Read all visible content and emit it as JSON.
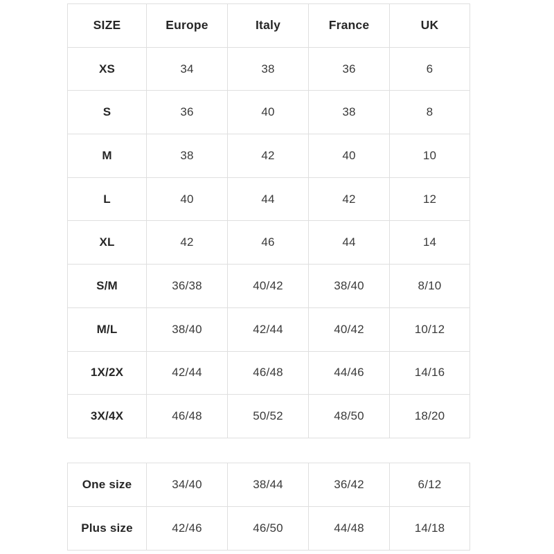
{
  "colors": {
    "background": "#ffffff",
    "border": "#dfdfdf",
    "text": "#3a3a3a",
    "text_bold": "#262626"
  },
  "size_chart": {
    "headers": [
      "SIZE",
      "Europe",
      "Italy",
      "France",
      "UK"
    ],
    "rows": [
      [
        "XS",
        "34",
        "38",
        "36",
        "6"
      ],
      [
        "S",
        "36",
        "40",
        "38",
        "8"
      ],
      [
        "M",
        "38",
        "42",
        "40",
        "10"
      ],
      [
        "L",
        "40",
        "44",
        "42",
        "12"
      ],
      [
        "XL",
        "42",
        "46",
        "44",
        "14"
      ],
      [
        "S/M",
        "36/38",
        "40/42",
        "38/40",
        "8/10"
      ],
      [
        "M/L",
        "38/40",
        "42/44",
        "40/42",
        "10/12"
      ],
      [
        "1X/2X",
        "42/44",
        "46/48",
        "44/46",
        "14/16"
      ],
      [
        "3X/4X",
        "46/48",
        "50/52",
        "48/50",
        "18/20"
      ]
    ]
  },
  "special_sizes": {
    "rows": [
      [
        "One size",
        "34/40",
        "38/44",
        "36/42",
        "6/12"
      ],
      [
        "Plus size",
        "42/46",
        "46/50",
        "44/48",
        "14/18"
      ]
    ]
  }
}
